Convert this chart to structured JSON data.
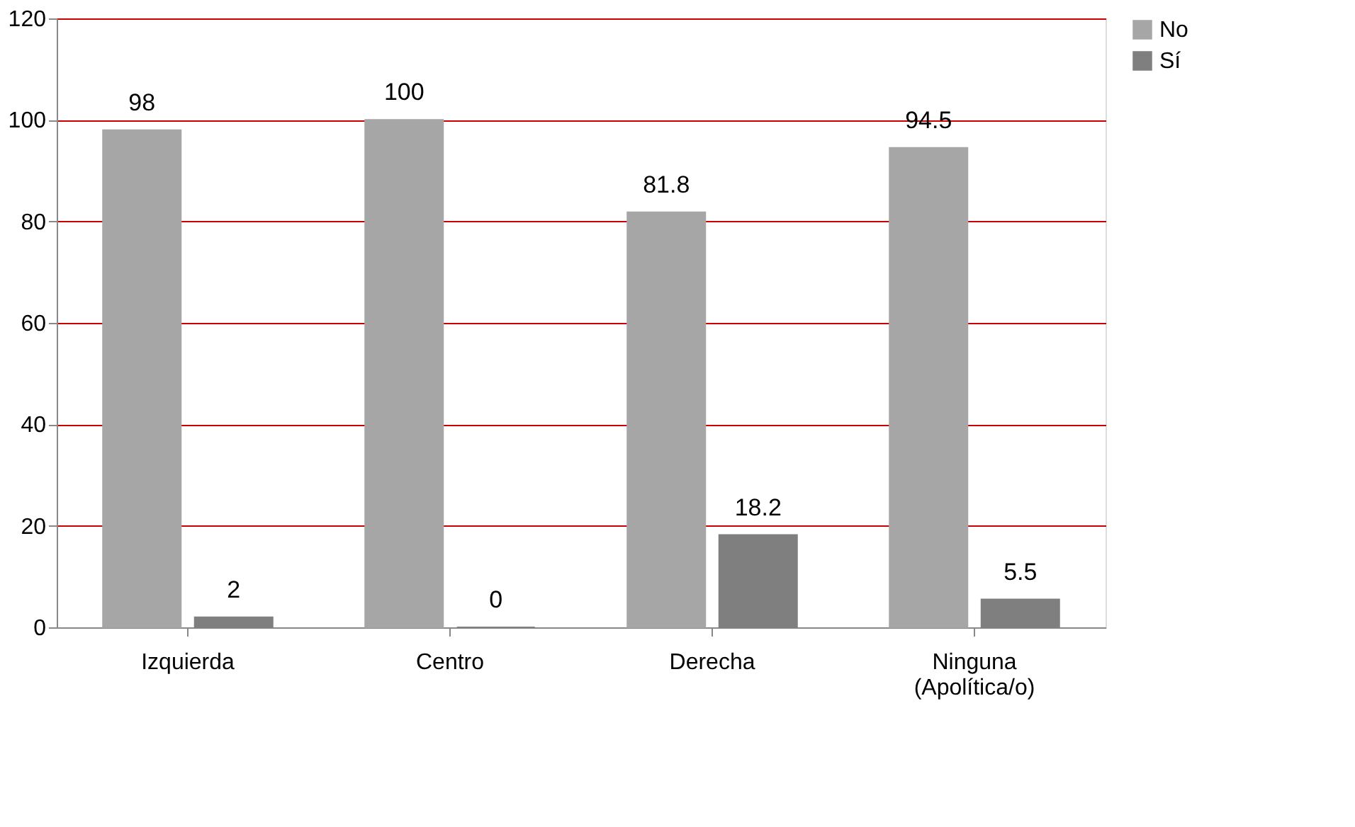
{
  "chart_data": {
    "type": "bar",
    "categories": [
      "Izquierda",
      "Centro",
      "Derecha",
      "Ninguna (Apolítica/o)"
    ],
    "series": [
      {
        "name": "No",
        "color": "#a6a6a6",
        "values": [
          98,
          100,
          81.8,
          94.5
        ]
      },
      {
        "name": "Sí",
        "color": "#7f7f7f",
        "values": [
          2,
          0,
          18.2,
          5.5
        ]
      }
    ],
    "ylim": [
      0,
      120
    ],
    "yticks": [
      0,
      20,
      40,
      60,
      80,
      100,
      120
    ],
    "grid": "y",
    "legend": "right",
    "data_labels": true
  }
}
